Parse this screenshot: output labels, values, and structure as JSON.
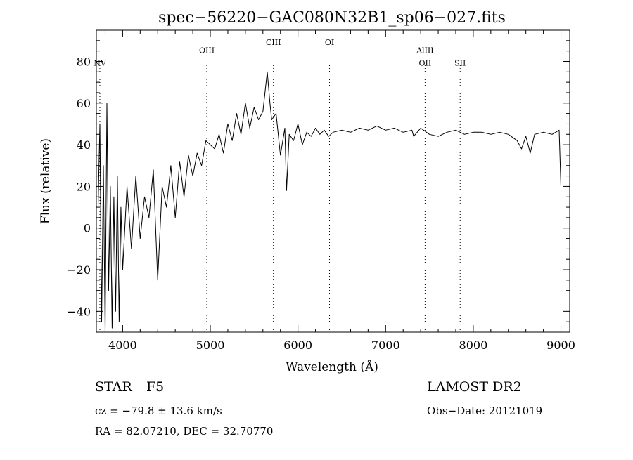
{
  "chart_data": {
    "type": "line",
    "title": "spec−56220−GAC080N32B1_sp06−027.fits",
    "xlabel": "Wavelength (Å)",
    "ylabel": "Flux (relative)",
    "xlim": [
      3700,
      9100
    ],
    "ylim": [
      -50,
      95
    ],
    "x_ticks": [
      4000,
      5000,
      6000,
      7000,
      8000,
      9000
    ],
    "x_tick_labels": [
      "4000",
      "5000",
      "6000",
      "7000",
      "8000",
      "9000"
    ],
    "y_ticks": [
      -40,
      -20,
      0,
      20,
      40,
      60,
      80
    ],
    "y_tick_labels": [
      "−40",
      "−20",
      "0",
      "20",
      "40",
      "60",
      "80"
    ],
    "grid": false,
    "legend": "none",
    "line_color": "#000000",
    "spectral_lines": [
      {
        "label": "NV",
        "x": 3740,
        "label_flux": 78
      },
      {
        "label": "OIII",
        "x": 4960,
        "label_flux": 84
      },
      {
        "label": "CIII",
        "x": 5720,
        "label_flux": 88
      },
      {
        "label": "OI",
        "x": 6360,
        "label_flux": 88
      },
      {
        "label": "AlIII",
        "x": 7450,
        "label_flux": 84
      },
      {
        "label": "OII",
        "x": 7450,
        "label_flux": 78
      },
      {
        "label": "SII",
        "x": 7850,
        "label_flux": 78
      }
    ],
    "series": [
      {
        "x": [
          3720,
          3740,
          3760,
          3780,
          3800,
          3820,
          3840,
          3860,
          3880,
          3900,
          3920,
          3940,
          3960,
          3980,
          4000,
          4050,
          4100,
          4150,
          4200,
          4250,
          4300,
          4350,
          4400,
          4450,
          4500,
          4550,
          4600,
          4650,
          4700,
          4750,
          4800,
          4850,
          4900,
          4950,
          5000,
          5050,
          5100,
          5150,
          5200,
          5250,
          5300,
          5350,
          5400,
          5450,
          5500,
          5550,
          5600,
          5650,
          5680,
          5700,
          5750,
          5800,
          5850,
          5870,
          5900,
          5950,
          6000,
          6050,
          6100,
          6150,
          6200,
          6250,
          6300,
          6350,
          6400,
          6500,
          6600,
          6700,
          6800,
          6900,
          7000,
          7100,
          7200,
          7300,
          7320,
          7400,
          7500,
          7600,
          7700,
          7800,
          7900,
          8000,
          8100,
          8200,
          8300,
          8400,
          8500,
          8550,
          8600,
          8650,
          8700,
          8800,
          8900,
          8980,
          9000
        ],
        "y": [
          10,
          50,
          -45,
          30,
          -50,
          60,
          -30,
          20,
          -48,
          15,
          -40,
          25,
          -45,
          10,
          -20,
          20,
          -10,
          25,
          -5,
          15,
          5,
          28,
          -25,
          20,
          10,
          30,
          5,
          32,
          15,
          35,
          25,
          36,
          30,
          42,
          40,
          38,
          45,
          36,
          50,
          42,
          55,
          45,
          60,
          48,
          58,
          52,
          56,
          75,
          60,
          52,
          55,
          35,
          48,
          18,
          45,
          42,
          50,
          40,
          46,
          44,
          48,
          45,
          47,
          44,
          46,
          47,
          46,
          48,
          47,
          49,
          47,
          48,
          46,
          47,
          44,
          48,
          45,
          44,
          46,
          47,
          45,
          46,
          46,
          45,
          46,
          45,
          42,
          38,
          44,
          36,
          45,
          46,
          45,
          47,
          20
        ]
      }
    ]
  },
  "info": {
    "object_class": "STAR",
    "subclass": "F5",
    "survey": "LAMOST DR2",
    "redshift_line": "cz = −79.8 ± 13.6 km/s",
    "obs_date": "Obs−Date: 20121019",
    "coords_line": "RA =  82.07210, DEC =  32.70770"
  }
}
